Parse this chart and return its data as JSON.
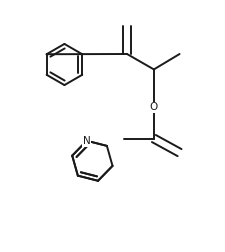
{
  "background_color": "#ffffff",
  "line_color": "#1a1a1a",
  "line_width": 1.4,
  "dbo": 0.018,
  "figsize": [
    2.25,
    2.52
  ],
  "dpi": 100,
  "xlim": [
    0.0,
    1.0
  ],
  "ylim": [
    0.0,
    1.0
  ]
}
